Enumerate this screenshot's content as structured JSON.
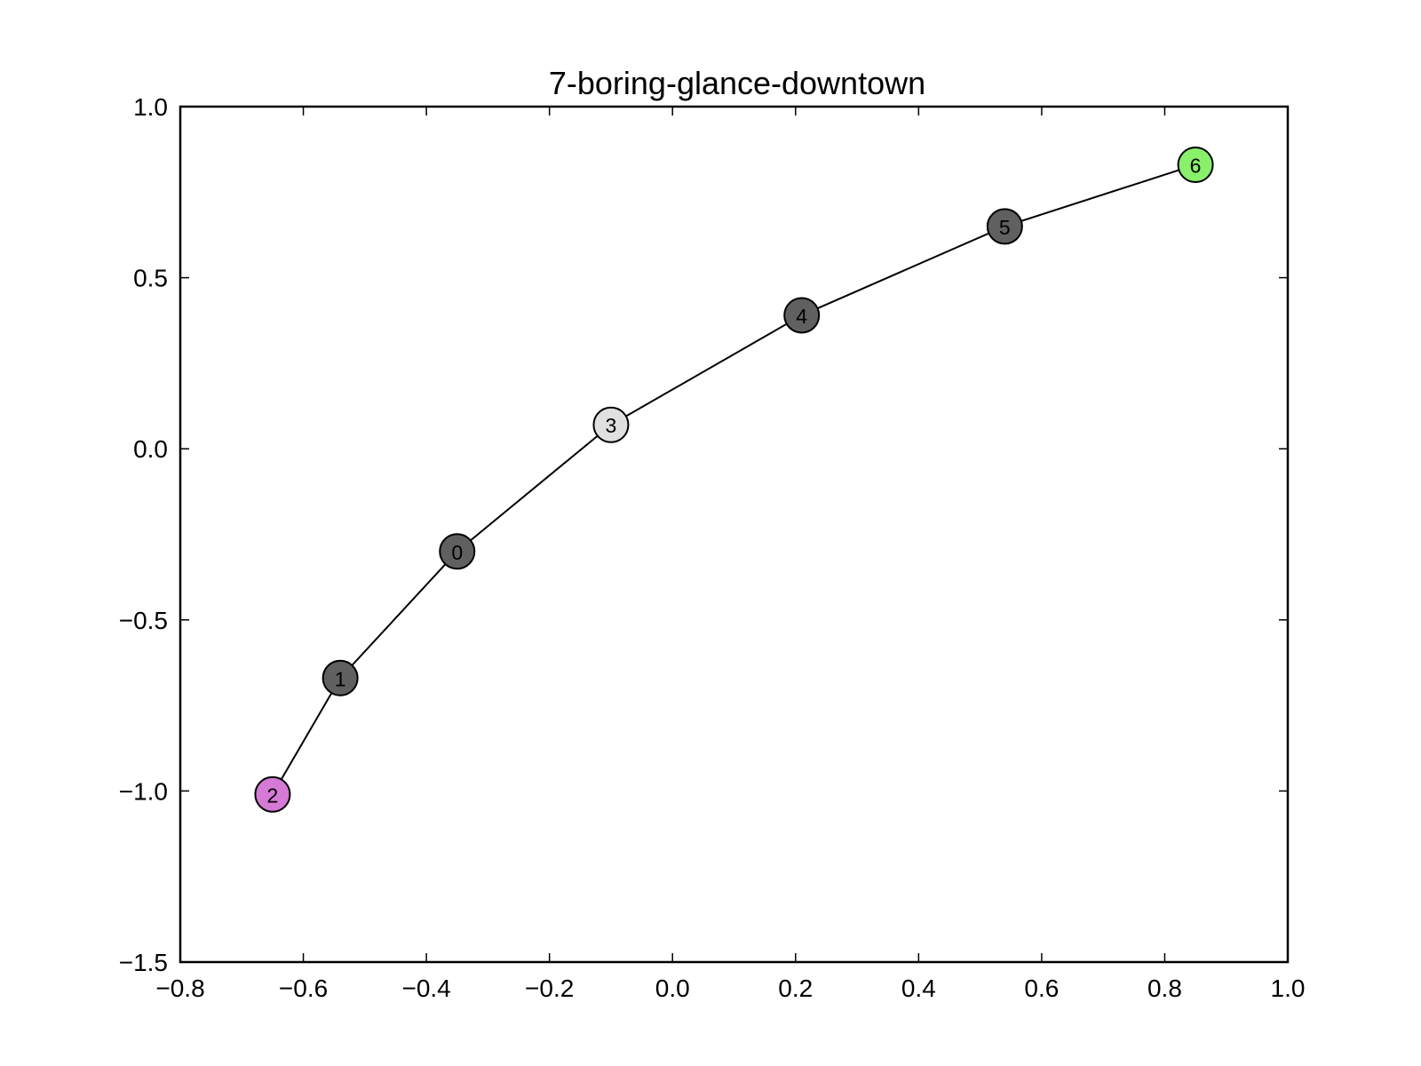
{
  "chart_data": {
    "type": "scatter",
    "title": "7-boring-glance-downtown",
    "xlabel": "",
    "ylabel": "",
    "xlim": [
      -0.8,
      1.0
    ],
    "ylim": [
      -1.5,
      1.0
    ],
    "x_ticks": [
      -0.8,
      -0.6,
      -0.4,
      -0.2,
      0.0,
      0.2,
      0.4,
      0.6,
      0.8,
      1.0
    ],
    "x_tick_labels": [
      "−0.8",
      "−0.6",
      "−0.4",
      "−0.2",
      "0.0",
      "0.2",
      "0.4",
      "0.6",
      "0.8",
      "1.0"
    ],
    "y_ticks": [
      -1.5,
      -1.0,
      -0.5,
      0.0,
      0.5,
      1.0
    ],
    "y_tick_labels": [
      "−1.5",
      "−1.0",
      "−0.5",
      "0.0",
      "0.5",
      "1.0"
    ],
    "grid": false,
    "legend": "none",
    "nodes": [
      {
        "label": "0",
        "x": -0.35,
        "y": -0.3,
        "color": "#606060"
      },
      {
        "label": "1",
        "x": -0.54,
        "y": -0.67,
        "color": "#606060"
      },
      {
        "label": "2",
        "x": -0.65,
        "y": -1.01,
        "color": "#d57ad5"
      },
      {
        "label": "3",
        "x": -0.1,
        "y": 0.07,
        "color": "#e0e0e0"
      },
      {
        "label": "4",
        "x": 0.21,
        "y": 0.39,
        "color": "#606060"
      },
      {
        "label": "5",
        "x": 0.54,
        "y": 0.65,
        "color": "#606060"
      },
      {
        "label": "6",
        "x": 0.85,
        "y": 0.83,
        "color": "#88f06a"
      }
    ],
    "edges": [
      [
        "2",
        "1"
      ],
      [
        "1",
        "0"
      ],
      [
        "0",
        "3"
      ],
      [
        "3",
        "4"
      ],
      [
        "4",
        "5"
      ],
      [
        "5",
        "6"
      ]
    ]
  }
}
